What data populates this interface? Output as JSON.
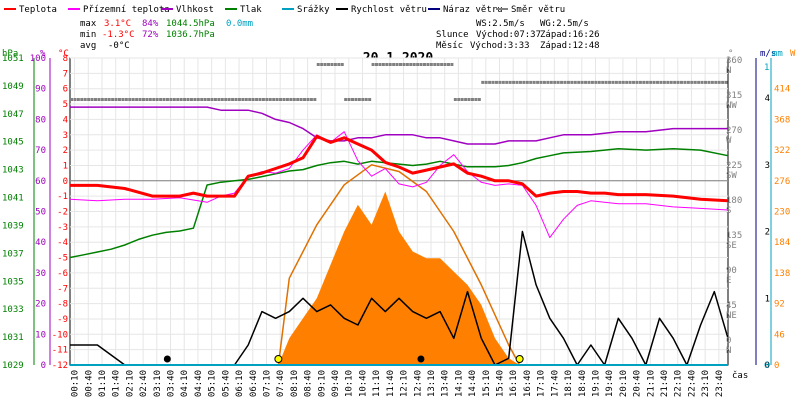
{
  "legend": {
    "items": [
      {
        "label": "Teplota",
        "color": "#ff0000"
      },
      {
        "label": "Přízemní teplota",
        "color": "#ff00ff"
      },
      {
        "label": "Vlhkost",
        "color": "#a000c0"
      },
      {
        "label": "Tlak",
        "color": "#008000"
      },
      {
        "label": "Srážky",
        "color": "#00a0c0"
      },
      {
        "label": "Rychlost větru",
        "color": "#000000"
      },
      {
        "label": "Náraz větru",
        "color": "#000080"
      },
      {
        "label": "Směr větru",
        "color": "#808080"
      }
    ]
  },
  "stats": {
    "max_label": "max",
    "max_temp": "3.1°C",
    "max_hum": "84%",
    "max_press": "1044.5hPa",
    "max_rain": "0.0mm",
    "min_label": "min",
    "min_temp": "-1.3°C",
    "min_hum": "72%",
    "min_press": "1036.7hPa",
    "avg_label": "avg",
    "avg_temp": "-0°C"
  },
  "wind_info": {
    "ws": "WS:2.5m/s",
    "wg": "WG:2.5m/s"
  },
  "sun_info": {
    "label": "Slunce",
    "rise_label": "Východ:07:37",
    "set_label": "Západ:16:26"
  },
  "moon_info": {
    "label": "Měsíc",
    "rise_label": "Východ:3:33",
    "set_label": "Západ:12:48"
  },
  "date": "20.1.2020",
  "chart_data": {
    "type": "line",
    "title": "20.1.2020",
    "x_ticks": [
      "00:10",
      "00:40",
      "01:10",
      "01:40",
      "02:10",
      "02:40",
      "03:10",
      "03:40",
      "04:10",
      "04:40",
      "05:10",
      "05:40",
      "06:10",
      "06:40",
      "07:10",
      "07:40",
      "08:10",
      "08:40",
      "09:10",
      "09:40",
      "10:10",
      "10:40",
      "11:10",
      "11:40",
      "12:10",
      "12:40",
      "13:10",
      "13:40",
      "14:10",
      "14:40",
      "15:10",
      "15:40",
      "16:10",
      "16:40",
      "17:10",
      "17:40",
      "18:10",
      "18:40",
      "19:10",
      "19:40",
      "20:10",
      "20:40",
      "21:10",
      "21:40",
      "22:10",
      "22:40",
      "23:10",
      "23:40"
    ],
    "x_axis_label": "čas",
    "axes": {
      "pressure": {
        "unit": "hPa",
        "ticks": [
          1029,
          1031,
          1033,
          1035,
          1037,
          1039,
          1041,
          1043,
          1045,
          1047,
          1049,
          1051
        ]
      },
      "humidity": {
        "unit": "%",
        "ticks": [
          0,
          10,
          20,
          30,
          40,
          50,
          60,
          70,
          80,
          90,
          100
        ]
      },
      "temperature": {
        "unit": "°C",
        "ticks": [
          -12,
          -11,
          -10,
          -9,
          -8,
          -7,
          -6,
          -5,
          -4,
          -3,
          -2,
          -1,
          0,
          1,
          2,
          3,
          4,
          5,
          6,
          7,
          8
        ]
      },
      "direction": {
        "unit": "°",
        "ticks": [
          {
            "deg": "0",
            "name": "N"
          },
          {
            "deg": "45",
            "name": "NE"
          },
          {
            "deg": "90",
            "name": "E"
          },
          {
            "deg": "135",
            "name": "SE"
          },
          {
            "deg": "180",
            "name": "S"
          },
          {
            "deg": "225",
            "name": "SW"
          },
          {
            "deg": "270",
            "name": "W"
          },
          {
            "deg": "315",
            "name": "NW"
          },
          {
            "deg": "360",
            "name": "N"
          }
        ]
      },
      "wind_speed": {
        "unit": "m/s",
        "ticks": [
          0,
          1,
          2,
          3,
          4
        ]
      },
      "rain": {
        "unit": "mm",
        "ticks": [
          0,
          1
        ]
      },
      "solar": {
        "unit": "W",
        "ticks": [
          0,
          46,
          92,
          138,
          184,
          230,
          276,
          322,
          368,
          414
        ]
      }
    },
    "series": [
      {
        "name": "Teplota",
        "color": "#ff0000",
        "axis": "temperature",
        "x": [
          0,
          1,
          2,
          3,
          4,
          4.5,
          5,
          5.5,
          6,
          6.5,
          7,
          7.5,
          8,
          8.5,
          9,
          9.5,
          10,
          10.5,
          11,
          11.5,
          12,
          12.5,
          13,
          13.5,
          14,
          14.5,
          15,
          15.5,
          16,
          16.5,
          17,
          17.5,
          18,
          18.5,
          19,
          19.5,
          20,
          21,
          22,
          23,
          24
        ],
        "y": [
          -0.3,
          -0.3,
          -0.5,
          -1,
          -1,
          -0.8,
          -1,
          -1,
          -1,
          0.3,
          0.5,
          0.8,
          1.1,
          1.5,
          2.9,
          2.5,
          2.8,
          2.4,
          2.0,
          1.2,
          0.9,
          0.5,
          0.7,
          0.9,
          1.1,
          0.5,
          0.3,
          0.0,
          0.0,
          -0.2,
          -1.0,
          -0.8,
          -0.7,
          -0.7,
          -0.8,
          -0.8,
          -0.9,
          -0.9,
          -1.0,
          -1.2,
          -1.3
        ]
      },
      {
        "name": "Přízemní teplota",
        "color": "#ff00ff",
        "axis": "temperature",
        "x": [
          0,
          1,
          2,
          3,
          4,
          5,
          5.5,
          6,
          6.5,
          7,
          7.5,
          8,
          8.5,
          9,
          9.5,
          10,
          10.5,
          11,
          11.5,
          12,
          12.5,
          13,
          13.5,
          14,
          14.5,
          15,
          15.5,
          16,
          16.5,
          17,
          17.5,
          18,
          18.5,
          19,
          20,
          21,
          22,
          23,
          24
        ],
        "y": [
          -1.2,
          -1.3,
          -1.2,
          -1.2,
          -1.1,
          -1.4,
          -1.0,
          -0.8,
          0.3,
          0.6,
          0.5,
          0.8,
          2.0,
          3.0,
          2.5,
          3.2,
          1.3,
          0.3,
          0.8,
          -0.2,
          -0.4,
          -0.1,
          1.0,
          1.7,
          0.6,
          -0.1,
          -0.3,
          -0.2,
          -0.3,
          -1.6,
          -3.7,
          -2.5,
          -1.6,
          -1.3,
          -1.5,
          -1.5,
          -1.7,
          -1.8,
          -1.9
        ]
      },
      {
        "name": "Vlhkost",
        "color": "#a000c0",
        "axis": "humidity",
        "x": [
          0,
          1,
          2,
          3,
          4,
          5,
          5.5,
          6,
          6.5,
          7,
          7.5,
          8,
          8.5,
          9,
          9.5,
          10,
          10.5,
          11,
          11.5,
          12,
          12.5,
          13,
          13.5,
          14,
          14.5,
          15,
          15.5,
          16,
          17,
          17.5,
          18,
          19,
          20,
          21,
          22,
          23,
          24
        ],
        "y": [
          84,
          84,
          84,
          84,
          84,
          84,
          83,
          83,
          83,
          82,
          80,
          79,
          77,
          74,
          73,
          73,
          74,
          74,
          75,
          75,
          75,
          74,
          74,
          73,
          72,
          72,
          72,
          73,
          73,
          74,
          75,
          75,
          76,
          76,
          77,
          77,
          77
        ]
      },
      {
        "name": "Tlak",
        "color": "#008000",
        "axis": "pressure",
        "x": [
          0,
          0.5,
          1,
          1.5,
          2,
          2.5,
          3,
          3.5,
          4,
          4.5,
          5,
          5.5,
          6,
          6.5,
          7,
          7.5,
          8,
          8.5,
          9,
          9.5,
          10,
          10.5,
          11,
          11.5,
          12,
          12.5,
          13,
          13.5,
          14,
          14.5,
          15,
          15.5,
          16,
          16.5,
          17,
          17.5,
          18,
          19,
          20,
          21,
          22,
          23,
          24
        ],
        "y": [
          1036.7,
          1036.9,
          1037.1,
          1037.3,
          1037.6,
          1038.0,
          1038.3,
          1038.5,
          1038.6,
          1038.8,
          1041.9,
          1042.1,
          1042.2,
          1042.3,
          1042.5,
          1042.7,
          1042.9,
          1043.0,
          1043.3,
          1043.5,
          1043.6,
          1043.4,
          1043.6,
          1043.5,
          1043.4,
          1043.3,
          1043.4,
          1043.6,
          1043.4,
          1043.2,
          1043.2,
          1043.2,
          1043.3,
          1043.5,
          1043.8,
          1044.0,
          1044.2,
          1044.3,
          1044.5,
          1044.4,
          1044.5,
          1044.4,
          1044.0
        ]
      },
      {
        "name": "Rychlost větru",
        "color": "#000000",
        "axis": "wind_speed",
        "x": [
          0,
          1,
          2,
          3,
          4,
          5,
          6,
          6.5,
          7,
          7.5,
          8,
          8.5,
          9,
          9.5,
          10,
          10.5,
          11,
          11.5,
          12,
          12.5,
          13,
          13.5,
          14,
          14.5,
          15,
          15.5,
          16,
          16.5,
          17,
          17.5,
          18,
          18.5,
          19,
          19.5,
          20,
          20.5,
          21,
          21.5,
          22,
          22.5,
          23,
          23.5,
          24
        ],
        "y": [
          0.3,
          0.3,
          0,
          0,
          0,
          0,
          0,
          0.3,
          0.8,
          0.7,
          0.8,
          1.0,
          0.8,
          0.9,
          0.7,
          0.6,
          1.0,
          0.8,
          1.0,
          0.8,
          0.7,
          0.8,
          0.4,
          1.1,
          0.4,
          0,
          0.1,
          2.0,
          1.2,
          0.7,
          0.4,
          0,
          0.3,
          0,
          0.7,
          0.4,
          0,
          0.7,
          0.4,
          0,
          0.6,
          1.1,
          0.4
        ]
      },
      {
        "name": "Solar",
        "color": "#ff8000",
        "axis": "solar",
        "x": [
          7.6,
          8,
          8.5,
          9,
          9.5,
          10,
          10.5,
          11,
          11.5,
          12,
          12.5,
          13,
          13.5,
          14,
          14.5,
          15,
          15.5,
          16,
          16.4
        ],
        "y": [
          0,
          40,
          70,
          100,
          150,
          200,
          240,
          210,
          260,
          200,
          170,
          160,
          160,
          140,
          120,
          90,
          40,
          10,
          0
        ]
      },
      {
        "name": "Solar max",
        "color": "#e07000",
        "axis": "solar",
        "x": [
          7.6,
          8,
          9,
          10,
          11,
          12,
          13,
          14,
          15,
          16,
          16.4
        ],
        "y": [
          0,
          130,
          210,
          270,
          300,
          290,
          260,
          200,
          120,
          30,
          0
        ]
      },
      {
        "name": "Směr větru",
        "color": "#808080",
        "axis": "direction",
        "x": [
          0,
          1,
          2,
          3,
          4,
          5,
          6,
          7,
          8,
          9,
          10,
          11,
          12,
          13,
          14,
          15,
          16,
          17,
          18,
          19,
          20,
          21,
          22,
          23,
          24
        ],
        "y": [
          315,
          315,
          315,
          315,
          315,
          315,
          315,
          315,
          315,
          360,
          315,
          360,
          360,
          360,
          315,
          337,
          337,
          337,
          337,
          337,
          337,
          337,
          337,
          337,
          337
        ]
      }
    ],
    "markers": {
      "sunrise_x": 7.6,
      "sunset_x": 16.4,
      "moonrise_x": 3.55,
      "moonset_x": 12.8
    },
    "grid": true
  }
}
